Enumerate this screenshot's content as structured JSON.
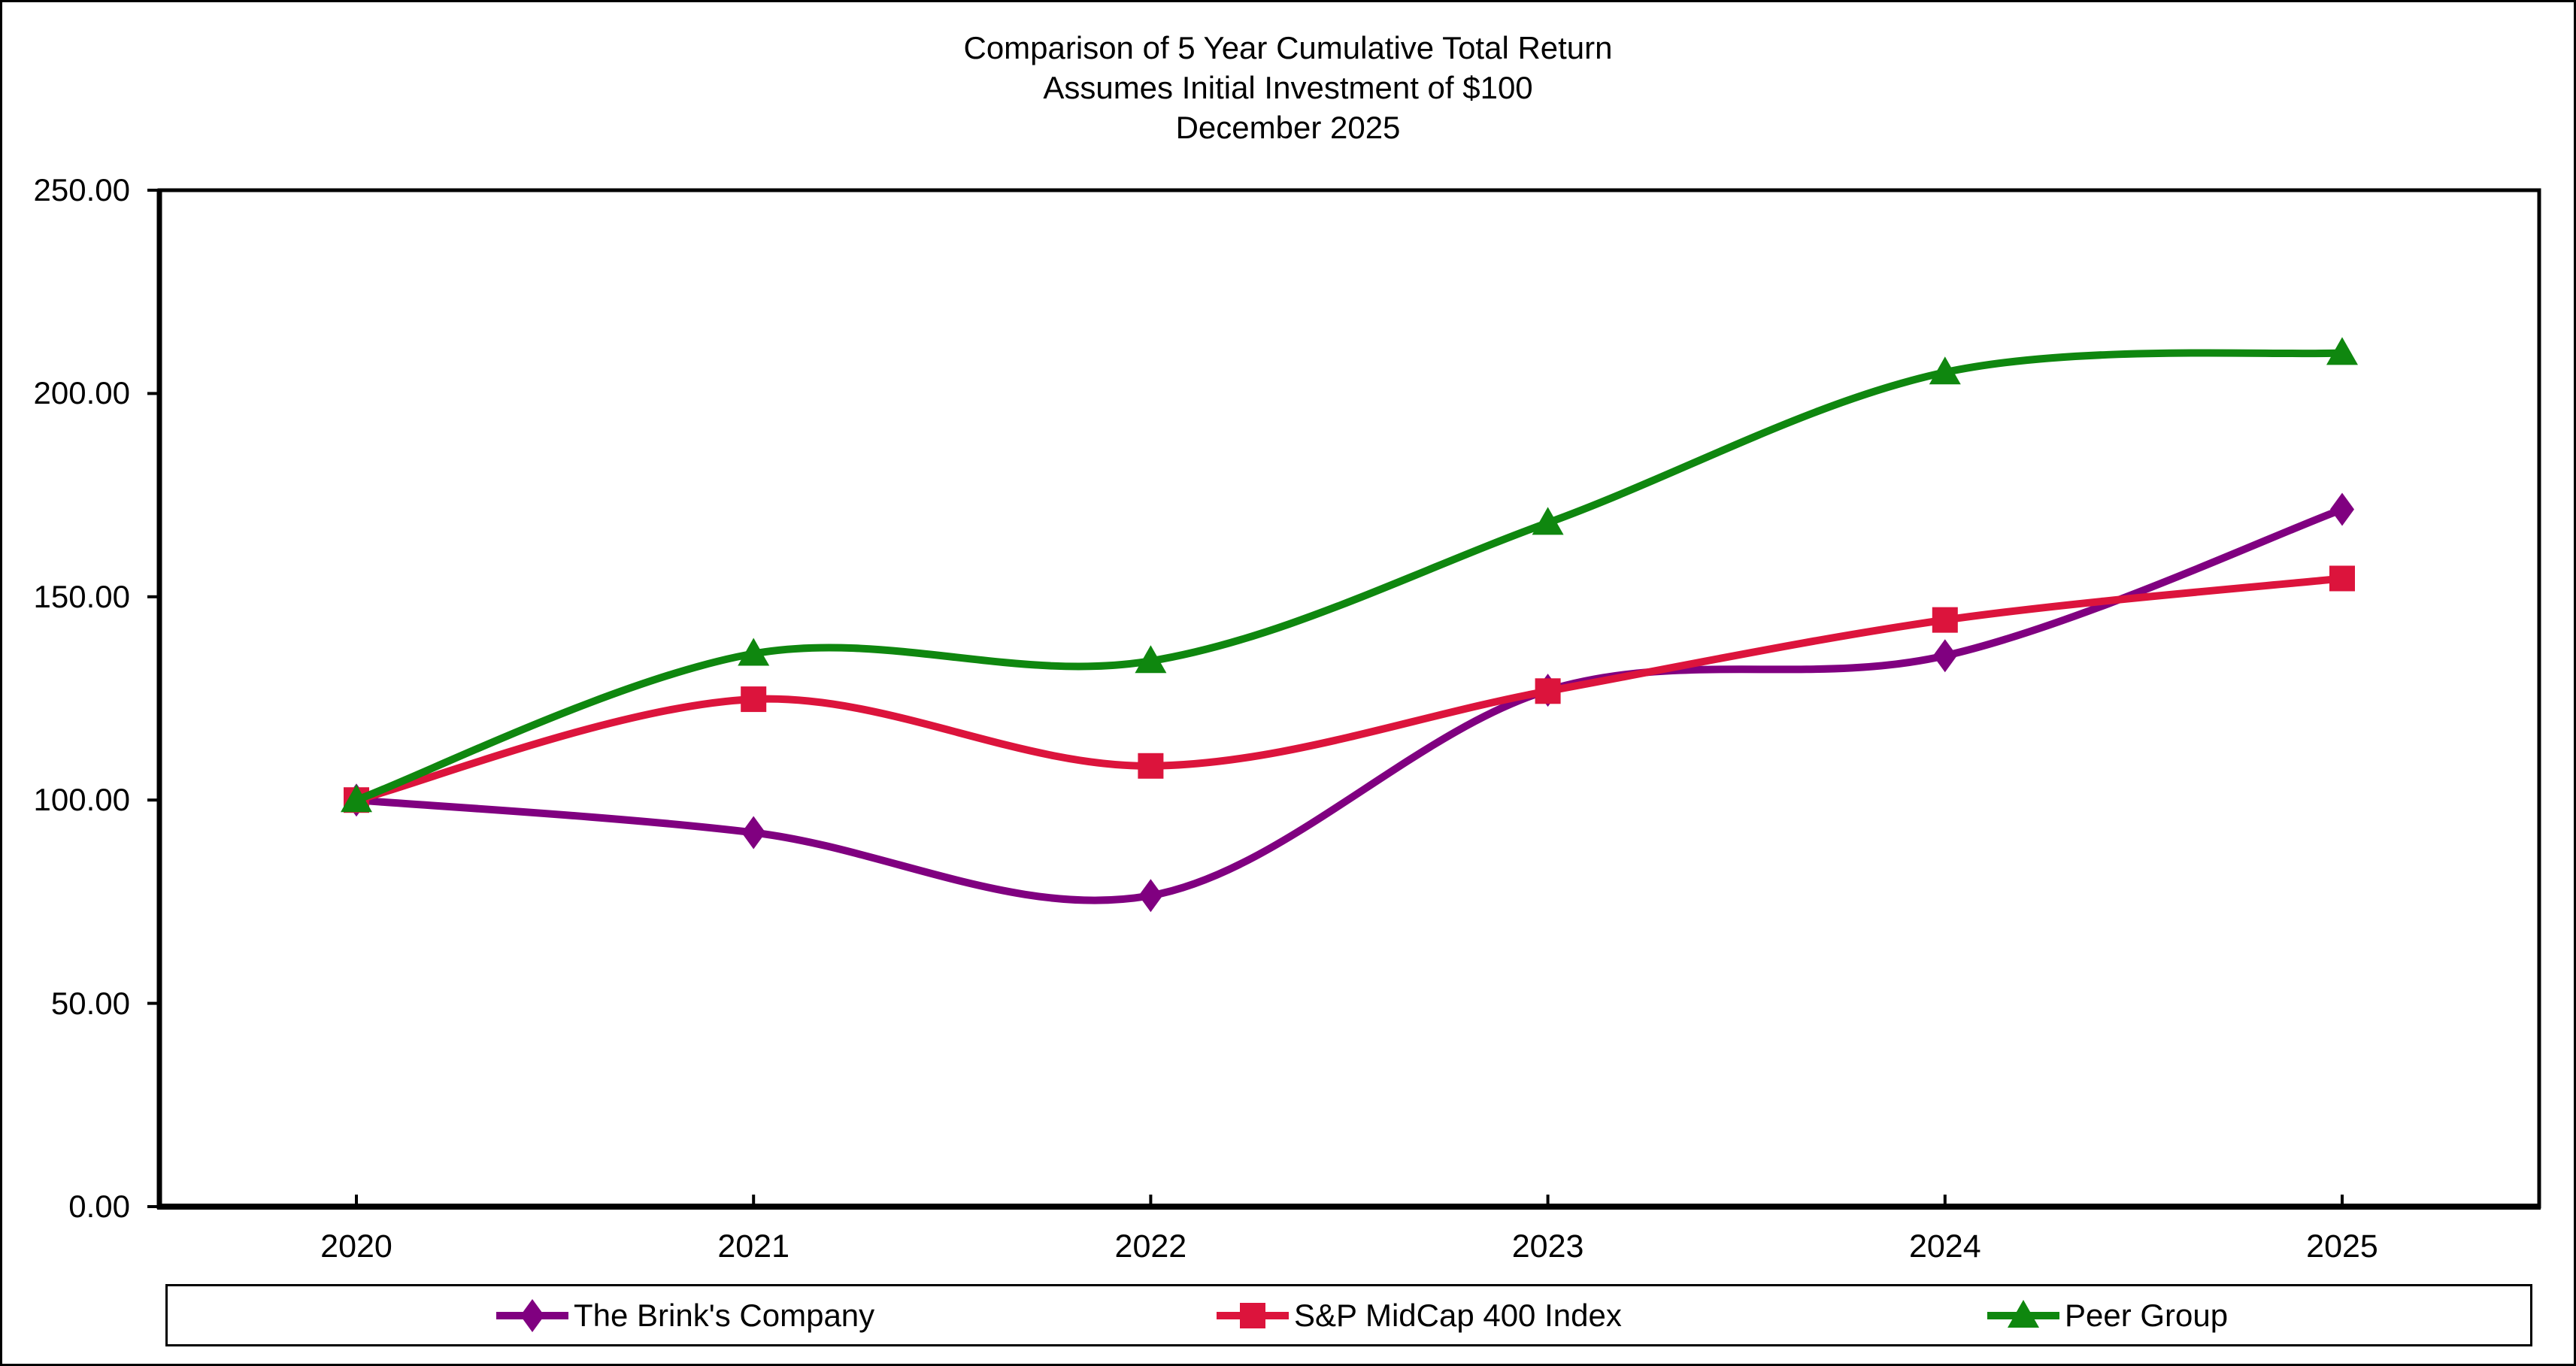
{
  "title": {
    "line1": "Comparison of 5 Year Cumulative Total Return",
    "line2": "Assumes Initial Investment of $100",
    "line3": "December 2025"
  },
  "chart_data": {
    "type": "line",
    "x": [
      2020,
      2021,
      2022,
      2023,
      2024,
      2025
    ],
    "xticklabels": [
      "2020",
      "2021",
      "2022",
      "2023",
      "2024",
      "2025"
    ],
    "yticks": [
      "250.00",
      "200.00",
      "150.00",
      "100.00",
      "50.00",
      "0.00"
    ],
    "ylim": [
      0,
      250
    ],
    "grid": false,
    "legend_position": "bottom",
    "axis_color": "#000000",
    "smoothed": true,
    "series": [
      {
        "name": "The Brink's Company",
        "marker": "diamond",
        "color": "#800080",
        "values": [
          100.0,
          92.0,
          76.5,
          127.0,
          135.5,
          171.5
        ]
      },
      {
        "name": "S&P MidCap 400 Index",
        "marker": "square",
        "color": "#DC143C",
        "values": [
          100.0,
          124.8,
          108.4,
          126.8,
          144.3,
          154.5
        ]
      },
      {
        "name": "Peer Group",
        "marker": "triangle",
        "color": "#0F870F",
        "values": [
          100.0,
          136.0,
          134.2,
          168.2,
          205.2,
          210.0
        ]
      }
    ]
  }
}
